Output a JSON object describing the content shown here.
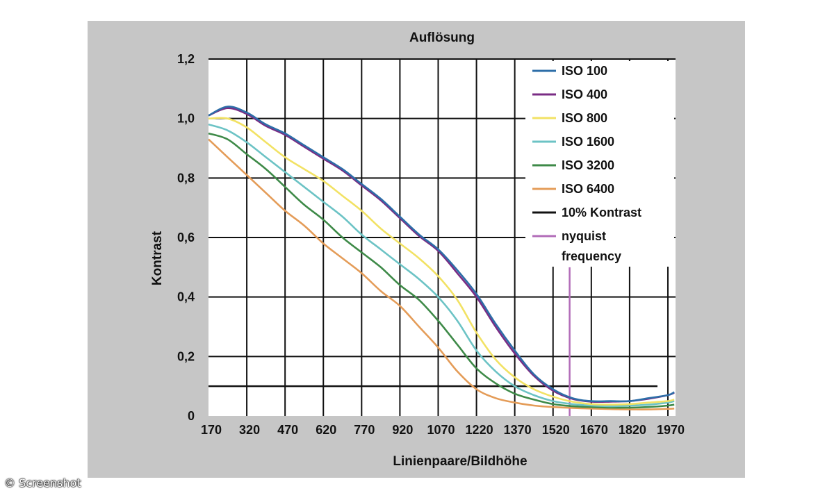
{
  "chart_data": {
    "type": "line",
    "title": "Auflösung",
    "xlabel": "Linienpaare/Bildhöhe",
    "ylabel": "Kontrast",
    "xlim": [
      170,
      2000
    ],
    "ylim": [
      0,
      1.2
    ],
    "x_ticks": [
      170,
      320,
      470,
      620,
      770,
      920,
      1070,
      1220,
      1370,
      1520,
      1670,
      1820,
      1970
    ],
    "y_ticks": [
      {
        "value": 0,
        "label": "0"
      },
      {
        "value": 0.2,
        "label": "0,2"
      },
      {
        "value": 0.4,
        "label": "0,4"
      },
      {
        "value": 0.6,
        "label": "0,6"
      },
      {
        "value": 0.8,
        "label": "0,8"
      },
      {
        "value": 1.0,
        "label": "1,0"
      },
      {
        "value": 1.2,
        "label": "1,2"
      }
    ],
    "grid": true,
    "legend_position": "top-right",
    "x": [
      170,
      245,
      320,
      395,
      470,
      545,
      620,
      695,
      770,
      845,
      920,
      995,
      1070,
      1145,
      1220,
      1295,
      1370,
      1445,
      1520,
      1595,
      1670,
      1745,
      1820,
      1895,
      1970,
      1995
    ],
    "series": [
      {
        "name": "ISO 100",
        "color": "#2d6ea8",
        "values": [
          1.01,
          1.04,
          1.02,
          0.98,
          0.95,
          0.91,
          0.87,
          0.83,
          0.78,
          0.73,
          0.67,
          0.61,
          0.56,
          0.49,
          0.41,
          0.31,
          0.22,
          0.14,
          0.09,
          0.06,
          0.05,
          0.05,
          0.05,
          0.06,
          0.07,
          0.08
        ]
      },
      {
        "name": "ISO 400",
        "color": "#7a2c84",
        "values": [
          1.01,
          1.035,
          1.015,
          0.975,
          0.945,
          0.905,
          0.865,
          0.825,
          0.775,
          0.725,
          0.665,
          0.605,
          0.555,
          0.48,
          0.4,
          0.3,
          0.21,
          0.135,
          0.085,
          0.058,
          0.048,
          0.048,
          0.05,
          0.058,
          0.07,
          0.078
        ]
      },
      {
        "name": "ISO 800",
        "color": "#f2e264",
        "values": [
          1.0,
          1.0,
          0.97,
          0.92,
          0.87,
          0.83,
          0.79,
          0.74,
          0.69,
          0.63,
          0.58,
          0.53,
          0.47,
          0.39,
          0.28,
          0.19,
          0.13,
          0.09,
          0.065,
          0.048,
          0.04,
          0.038,
          0.04,
          0.045,
          0.05,
          0.055
        ]
      },
      {
        "name": "ISO 1600",
        "color": "#6cc3c5",
        "values": [
          0.98,
          0.96,
          0.92,
          0.87,
          0.82,
          0.77,
          0.72,
          0.67,
          0.61,
          0.56,
          0.51,
          0.46,
          0.4,
          0.32,
          0.22,
          0.15,
          0.1,
          0.07,
          0.05,
          0.04,
          0.035,
          0.033,
          0.035,
          0.038,
          0.045,
          0.05
        ]
      },
      {
        "name": "ISO 3200",
        "color": "#3e8a48",
        "values": [
          0.95,
          0.93,
          0.88,
          0.83,
          0.77,
          0.71,
          0.66,
          0.6,
          0.55,
          0.5,
          0.44,
          0.39,
          0.32,
          0.24,
          0.16,
          0.11,
          0.075,
          0.055,
          0.04,
          0.033,
          0.03,
          0.028,
          0.028,
          0.03,
          0.035,
          0.038
        ]
      },
      {
        "name": "ISO 6400",
        "color": "#e49c58",
        "values": [
          0.93,
          0.87,
          0.81,
          0.75,
          0.69,
          0.64,
          0.58,
          0.53,
          0.48,
          0.42,
          0.37,
          0.3,
          0.23,
          0.15,
          0.09,
          0.06,
          0.045,
          0.035,
          0.03,
          0.027,
          0.025,
          0.023,
          0.022,
          0.022,
          0.024,
          0.025
        ]
      }
    ],
    "reference_lines": [
      {
        "name": "10% Kontrast",
        "color": "#111111",
        "axis": "y",
        "value": 0.1
      },
      {
        "name": "nyquist frequency",
        "color": "#b26cb8",
        "axis": "x",
        "value": 1585
      }
    ],
    "legend": [
      {
        "label": "ISO 100",
        "color": "#2d6ea8"
      },
      {
        "label": "ISO 400",
        "color": "#7a2c84"
      },
      {
        "label": "ISO 800",
        "color": "#f2e264"
      },
      {
        "label": "ISO 1600",
        "color": "#6cc3c5"
      },
      {
        "label": "ISO 3200",
        "color": "#3e8a48"
      },
      {
        "label": "ISO 6400",
        "color": "#e49c58"
      },
      {
        "label": "10% Kontrast",
        "color": "#111111"
      },
      {
        "label": "nyquist frequency",
        "lines": [
          "nyquist",
          "frequency"
        ],
        "color": "#b26cb8"
      }
    ]
  },
  "watermark": "© Screenshot"
}
